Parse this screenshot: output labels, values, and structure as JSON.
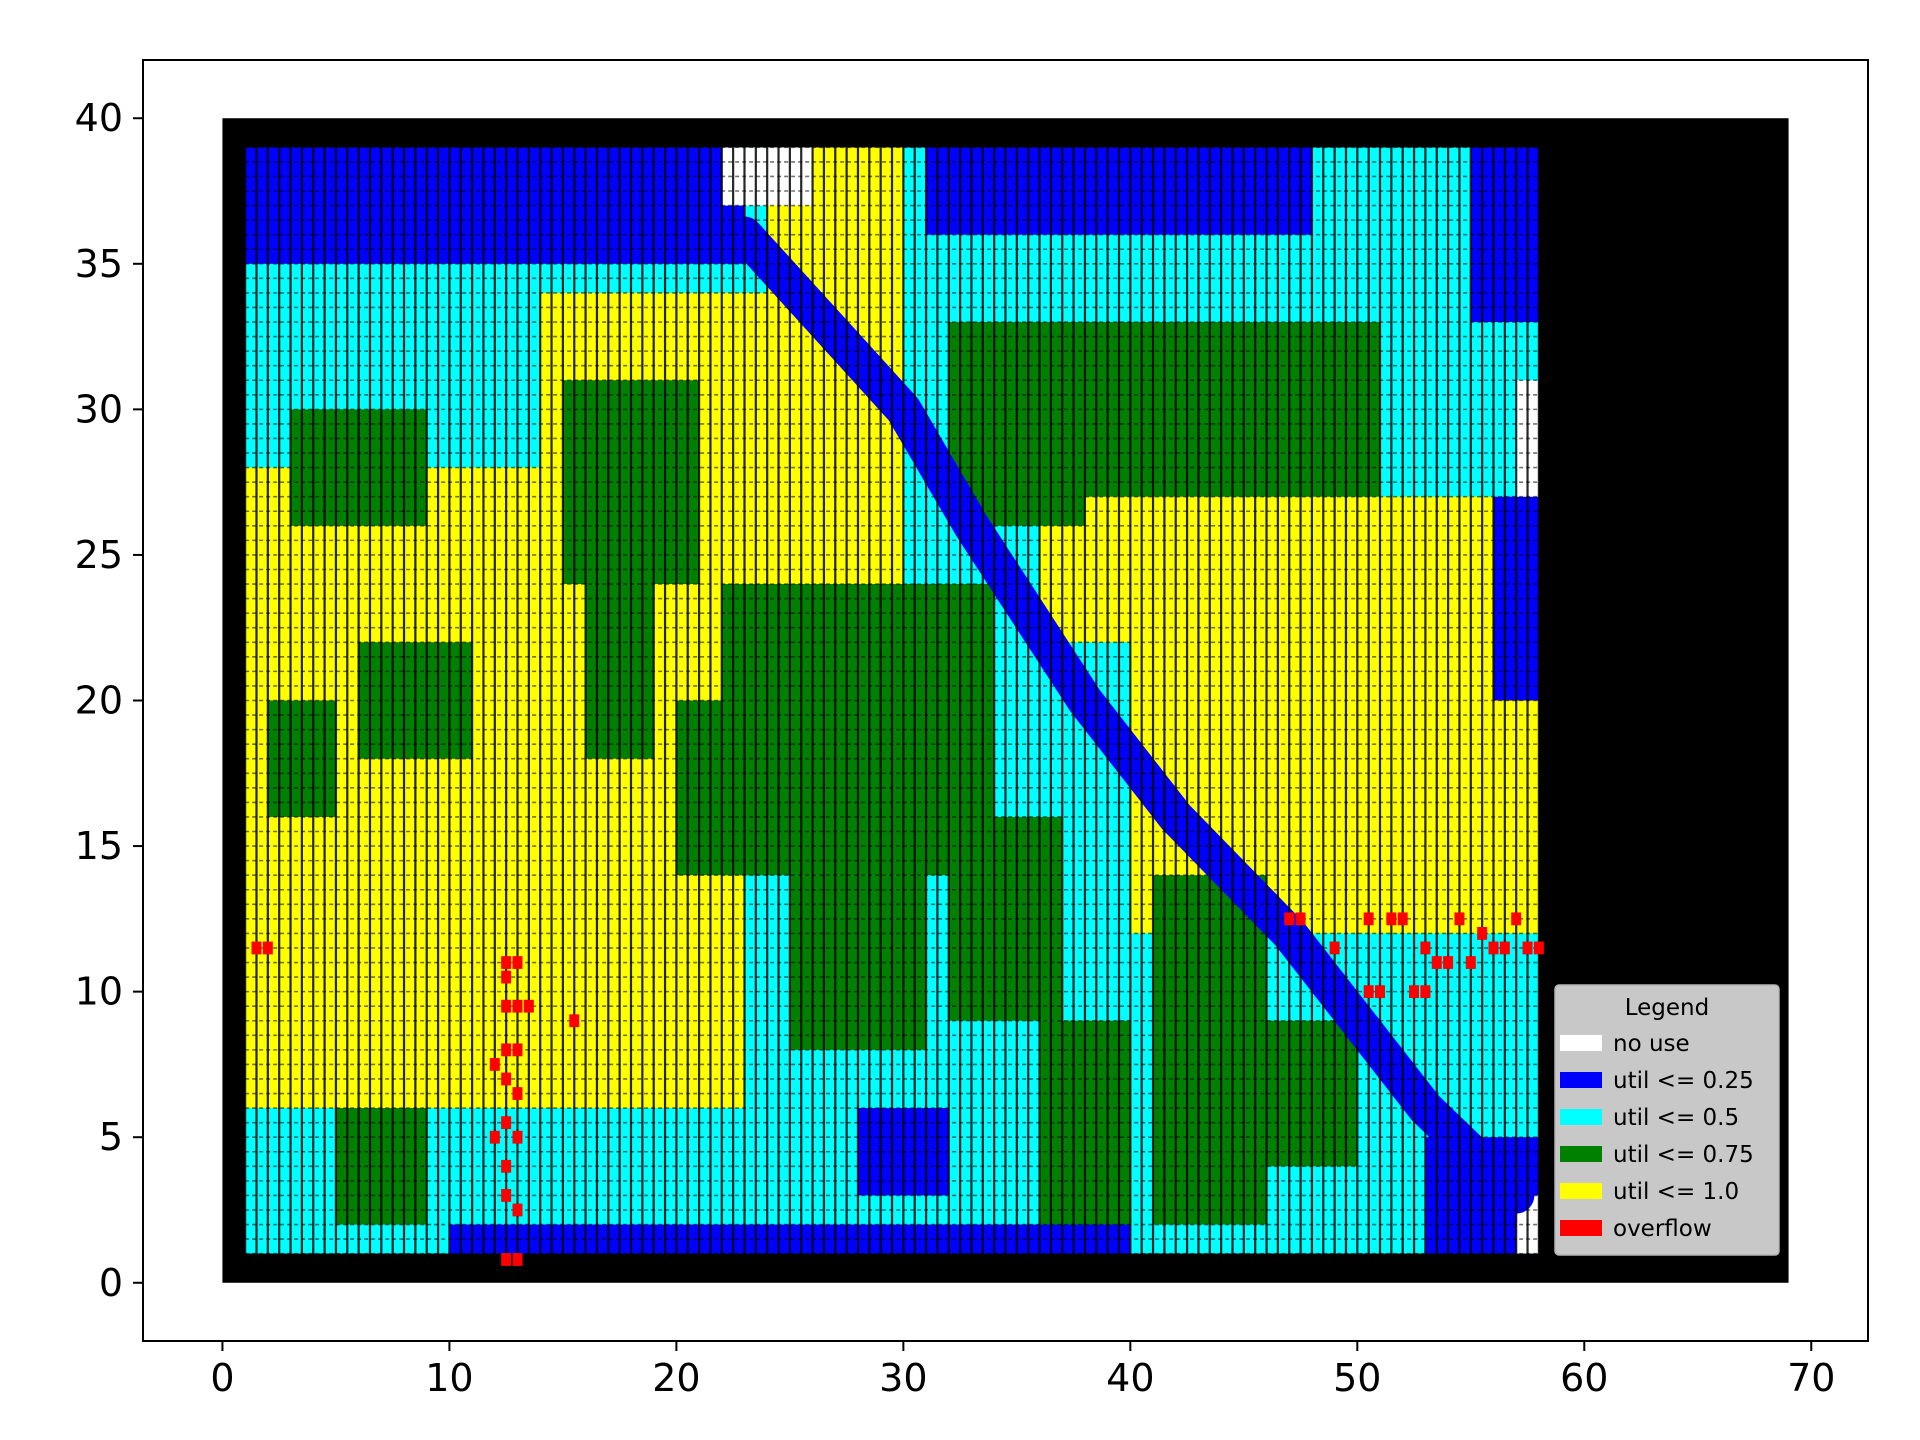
{
  "chart_data": {
    "type": "heatmap",
    "title": "",
    "xlabel": "",
    "ylabel": "",
    "xlim": [
      -3.5,
      72.5
    ],
    "ylim": [
      -2,
      42
    ],
    "xticks": [
      0,
      10,
      20,
      30,
      40,
      50,
      60,
      70
    ],
    "yticks": [
      0,
      5,
      10,
      15,
      20,
      25,
      30,
      35,
      40
    ],
    "die": {
      "x": [
        0,
        69
      ],
      "y": [
        0,
        40
      ]
    },
    "core": {
      "x": [
        1,
        58
      ],
      "y": [
        1,
        39
      ]
    },
    "colors": {
      "die": "#000000",
      "no_use": "#ffffff",
      "util_025": "#0000ff",
      "util_05": "#00ffff",
      "util_075": "#008000",
      "util_10": "#ffff00",
      "overflow": "#ff0000",
      "legend_bg": "#c8c8c8"
    },
    "legend": {
      "title": "Legend",
      "placement": "lower-right",
      "entries": [
        {
          "label": "no use",
          "color": "#ffffff"
        },
        {
          "label": "util <= 0.25",
          "color": "#0000ff"
        },
        {
          "label": "util <= 0.5",
          "color": "#00ffff"
        },
        {
          "label": "util <= 0.75",
          "color": "#008000"
        },
        {
          "label": "util <= 1.0",
          "color": "#ffff00"
        },
        {
          "label": "overflow",
          "color": "#ff0000"
        }
      ]
    },
    "regions": [
      {
        "category": "util_05",
        "x": [
          1,
          58
        ],
        "y": [
          1,
          39
        ]
      },
      {
        "category": "util_10",
        "x": [
          1,
          14
        ],
        "y": [
          6,
          28
        ]
      },
      {
        "category": "util_10",
        "x": [
          8,
          23
        ],
        "y": [
          6,
          24
        ]
      },
      {
        "category": "util_10",
        "x": [
          14,
          30
        ],
        "y": [
          20,
          34
        ]
      },
      {
        "category": "util_10",
        "x": [
          40,
          58
        ],
        "y": [
          12,
          27
        ]
      },
      {
        "category": "util_10",
        "x": [
          36,
          44
        ],
        "y": [
          22,
          32
        ]
      },
      {
        "category": "util_10",
        "x": [
          24,
          30
        ],
        "y": [
          34,
          39
        ]
      },
      {
        "category": "util_075",
        "x": [
          3,
          9
        ],
        "y": [
          26,
          30
        ]
      },
      {
        "category": "util_075",
        "x": [
          6,
          11
        ],
        "y": [
          18,
          22
        ]
      },
      {
        "category": "util_075",
        "x": [
          2,
          5
        ],
        "y": [
          16,
          20
        ]
      },
      {
        "category": "util_075",
        "x": [
          15,
          21
        ],
        "y": [
          24,
          31
        ]
      },
      {
        "category": "util_075",
        "x": [
          16,
          19
        ],
        "y": [
          18,
          24
        ]
      },
      {
        "category": "util_075",
        "x": [
          22,
          34
        ],
        "y": [
          14,
          24
        ]
      },
      {
        "category": "util_075",
        "x": [
          25,
          31
        ],
        "y": [
          8,
          14
        ]
      },
      {
        "category": "util_075",
        "x": [
          32,
          37
        ],
        "y": [
          9,
          16
        ]
      },
      {
        "category": "util_075",
        "x": [
          32,
          38
        ],
        "y": [
          26,
          33
        ]
      },
      {
        "category": "util_075",
        "x": [
          38,
          51
        ],
        "y": [
          27,
          33
        ]
      },
      {
        "category": "util_075",
        "x": [
          41,
          46
        ],
        "y": [
          2,
          14
        ]
      },
      {
        "category": "util_075",
        "x": [
          36,
          40
        ],
        "y": [
          2,
          9
        ]
      },
      {
        "category": "util_075",
        "x": [
          46,
          50
        ],
        "y": [
          4,
          9
        ]
      },
      {
        "category": "util_075",
        "x": [
          5,
          9
        ],
        "y": [
          2,
          6
        ]
      },
      {
        "category": "util_075",
        "x": [
          20,
          24
        ],
        "y": [
          14,
          20
        ]
      },
      {
        "category": "util_025",
        "x": [
          1,
          23
        ],
        "y": [
          35,
          39
        ]
      },
      {
        "category": "util_025",
        "x": [
          31,
          48
        ],
        "y": [
          36,
          39
        ]
      },
      {
        "category": "util_025",
        "x": [
          55,
          58
        ],
        "y": [
          33,
          39
        ]
      },
      {
        "category": "util_025",
        "x": [
          53,
          58
        ],
        "y": [
          1,
          5
        ]
      },
      {
        "category": "util_025",
        "x": [
          28,
          32
        ],
        "y": [
          3,
          6
        ]
      },
      {
        "category": "util_025",
        "x": [
          10,
          40
        ],
        "y": [
          1,
          2
        ]
      },
      {
        "category": "util_025",
        "x": [
          56,
          58
        ],
        "y": [
          20,
          27
        ]
      },
      {
        "category": "no_use",
        "x": [
          57,
          58
        ],
        "y": [
          1,
          3
        ]
      },
      {
        "category": "no_use",
        "x": [
          57,
          58
        ],
        "y": [
          27,
          31
        ]
      },
      {
        "category": "no_use",
        "x": [
          22,
          26
        ],
        "y": [
          37,
          39
        ]
      }
    ],
    "diagonal_band": {
      "category": "util_025",
      "points": [
        [
          23,
          36
        ],
        [
          30,
          30
        ],
        [
          33,
          26
        ],
        [
          38,
          20
        ],
        [
          42,
          16
        ],
        [
          47,
          12
        ],
        [
          50,
          9
        ],
        [
          53,
          6
        ],
        [
          57,
          3
        ]
      ]
    },
    "overflow_cells": [
      [
        1.5,
        11.5
      ],
      [
        2,
        11.5
      ],
      [
        12.5,
        11
      ],
      [
        13,
        11
      ],
      [
        12.5,
        10.5
      ],
      [
        12.5,
        9.5
      ],
      [
        13,
        9.5
      ],
      [
        13.5,
        9.5
      ],
      [
        12.5,
        8
      ],
      [
        13,
        8
      ],
      [
        12,
        7.5
      ],
      [
        12.5,
        7
      ],
      [
        13,
        6.5
      ],
      [
        12.5,
        5.5
      ],
      [
        12,
        5
      ],
      [
        13,
        5
      ],
      [
        12.5,
        4
      ],
      [
        12.5,
        3
      ],
      [
        13,
        2.5
      ],
      [
        12.5,
        0.8
      ],
      [
        13,
        0.8
      ],
      [
        15.5,
        9
      ],
      [
        47,
        12.5
      ],
      [
        47.5,
        12.5
      ],
      [
        49,
        11.5
      ],
      [
        50.5,
        12.5
      ],
      [
        51.5,
        12.5
      ],
      [
        52,
        12.5
      ],
      [
        53,
        11.5
      ],
      [
        53.5,
        11
      ],
      [
        54,
        11
      ],
      [
        54.5,
        12.5
      ],
      [
        55,
        11
      ],
      [
        55.5,
        12
      ],
      [
        56,
        11.5
      ],
      [
        56.5,
        11.5
      ],
      [
        57,
        12.5
      ],
      [
        57.5,
        11.5
      ],
      [
        58,
        11.5
      ],
      [
        50.5,
        10
      ],
      [
        51,
        10
      ],
      [
        52.5,
        10
      ],
      [
        53,
        10
      ]
    ]
  }
}
